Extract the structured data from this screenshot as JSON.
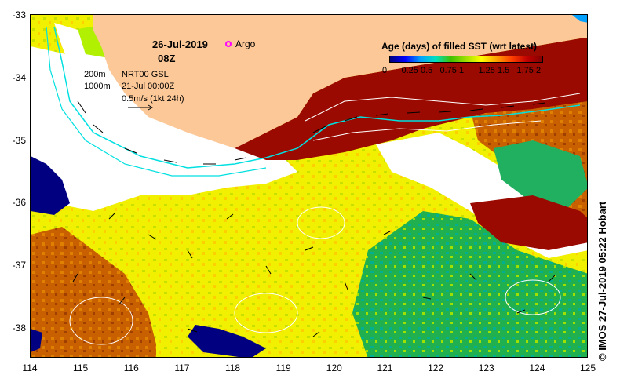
{
  "header": {
    "date": "26-Jul-2019",
    "time": "08Z",
    "argo_label": "Argo",
    "argo_color": "#ff00ff"
  },
  "annotations": {
    "depth_200": "200m",
    "depth_1000": "1000m",
    "current_product": "NRT00 GSL",
    "current_time": "21-Jul 00:00Z",
    "vector_scale": "0.5m/s (1kt 24h)"
  },
  "colorbar": {
    "title": "Age (days) of filled SST (wrt latest)",
    "labels": [
      "0",
      "0.25",
      "0.5",
      "0.75",
      "1",
      "1.25",
      "1.5",
      "1.75",
      "2"
    ],
    "colors": [
      "#000080",
      "#0000ff",
      "#00a0ff",
      "#00e0c0",
      "#40c000",
      "#a0e000",
      "#ffff00",
      "#ffa000",
      "#ff4000",
      "#c00000",
      "#800000"
    ]
  },
  "axes": {
    "x_ticks": [
      "114",
      "115",
      "116",
      "117",
      "118",
      "119",
      "120",
      "121",
      "122",
      "123",
      "124",
      "125"
    ],
    "y_ticks": [
      "-33",
      "-34",
      "-35",
      "-36",
      "-37",
      "-38"
    ],
    "x_range": [
      114,
      125
    ],
    "y_range": [
      -38.5,
      -33
    ]
  },
  "colors": {
    "land": "#fcc898",
    "old_dark_red": "#9a0a00",
    "orange": "#e07000",
    "yellow": "#f0f000",
    "lime": "#b0f000",
    "green": "#20b020",
    "teal": "#00b090",
    "navy": "#000080",
    "current_path": "#00e0e0"
  },
  "credit": "© IMOS 27-Jul-2019 05:22 Hobart"
}
